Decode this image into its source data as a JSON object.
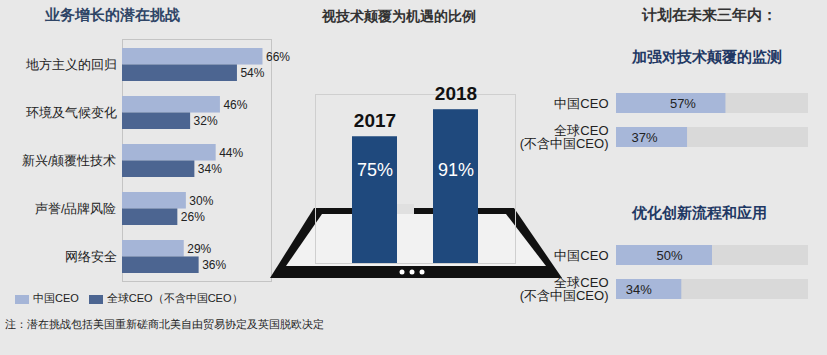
{
  "chart_data": [
    {
      "type": "bar",
      "orientation": "horizontal",
      "title": "业务增长的潜在挑战",
      "categories": [
        "地方主义的回归",
        "环境及气候变化",
        "新兴/颠覆性技术",
        "声誉/品牌风险",
        "网络安全"
      ],
      "series": [
        {
          "name": "中国CEO",
          "color": "#a5b5d7",
          "values": [
            66,
            46,
            44,
            30,
            29
          ],
          "value_labels": [
            "66%",
            "46%",
            "44%",
            "30%",
            "29%"
          ]
        },
        {
          "name": "全球CEO（不含中国CEO）",
          "color": "#4c6591",
          "values": [
            54,
            32,
            34,
            26,
            36
          ],
          "value_labels": [
            "54%",
            "32%",
            "34%",
            "26%",
            "36%"
          ]
        }
      ],
      "xlim": [
        0,
        70
      ],
      "xticks": [],
      "tick_labels": "y",
      "data_labels": true,
      "legend": "bottom",
      "note": "注：潜在挑战包括美国重新磋商北美自由贸易协定及英国脱欧决定"
    },
    {
      "type": "bar",
      "title": "视技术颠覆为机遇的比例",
      "categories": [
        "2017",
        "2018"
      ],
      "values": [
        75,
        91
      ],
      "value_labels": [
        "75%",
        "91%"
      ],
      "color": "#1f497d",
      "ylim": [
        0,
        100
      ],
      "yticks": [],
      "tick_labels": "x",
      "data_labels": true
    },
    {
      "type": "bar",
      "orientation": "horizontal",
      "heading": "计划在未来三年内：",
      "title": "加强对技术颠覆的监测",
      "categories": [
        "中国CEO",
        "全球CEO\n(不含中国CEO)"
      ],
      "values": [
        57,
        37
      ],
      "value_labels": [
        "57%",
        "37%"
      ],
      "color": "#a7b7d9",
      "xlim": [
        0,
        100
      ],
      "xticks": [],
      "tick_labels": "y",
      "data_labels": true
    },
    {
      "type": "bar",
      "orientation": "horizontal",
      "title": "优化创新流程和应用",
      "categories": [
        "中国CEO",
        "全球CEO\n(不含中国CEO)"
      ],
      "values": [
        50,
        34
      ],
      "value_labels": [
        "50%",
        "34%"
      ],
      "color": "#a7b7d9",
      "xlim": [
        0,
        100
      ],
      "xticks": [],
      "tick_labels": "y",
      "data_labels": true
    }
  ]
}
